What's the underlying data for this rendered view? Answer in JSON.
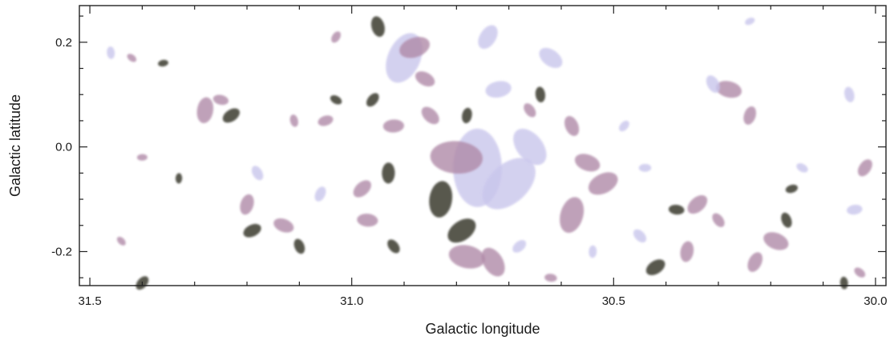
{
  "chart_data": {
    "type": "heatmap",
    "title": "",
    "xlabel": "Galactic longitude",
    "ylabel": "Galactic latitude",
    "xlim": [
      31.52,
      29.98
    ],
    "ylim": [
      -0.265,
      0.27
    ],
    "x_ticks": [
      {
        "value": 31.5,
        "label": "31.5"
      },
      {
        "value": 31.0,
        "label": "31.0"
      },
      {
        "value": 30.5,
        "label": "30.5"
      },
      {
        "value": 30.0,
        "label": "30.0"
      }
    ],
    "x_minor_step": 0.1,
    "y_ticks": [
      {
        "value": 0.2,
        "label": "0.2"
      },
      {
        "value": 0.0,
        "label": "0.0"
      },
      {
        "value": -0.2,
        "label": "-0.2"
      }
    ],
    "y_minor_step": 0.05,
    "grid": false,
    "colors": {
      "lavender": "#c9c6ec",
      "mauve": "#b08aa8",
      "dark": "#3a3a2e",
      "olive": "#6f6a4f"
    },
    "clumps": [
      {
        "l": 30.76,
        "b": -0.04,
        "s": 0.075,
        "c": "lavender"
      },
      {
        "l": 30.7,
        "b": -0.07,
        "s": 0.06,
        "c": "lavender"
      },
      {
        "l": 30.8,
        "b": -0.02,
        "s": 0.05,
        "c": "mauve"
      },
      {
        "l": 30.66,
        "b": 0.0,
        "s": 0.04,
        "c": "lavender"
      },
      {
        "l": 30.83,
        "b": -0.1,
        "s": 0.035,
        "c": "dark"
      },
      {
        "l": 30.79,
        "b": -0.16,
        "s": 0.03,
        "c": "dark"
      },
      {
        "l": 30.78,
        "b": -0.21,
        "s": 0.035,
        "c": "mauve"
      },
      {
        "l": 30.73,
        "b": -0.22,
        "s": 0.03,
        "c": "mauve"
      },
      {
        "l": 30.58,
        "b": -0.13,
        "s": 0.035,
        "c": "mauve"
      },
      {
        "l": 30.52,
        "b": -0.07,
        "s": 0.03,
        "c": "mauve"
      },
      {
        "l": 30.55,
        "b": -0.03,
        "s": 0.025,
        "c": "mauve"
      },
      {
        "l": 30.58,
        "b": 0.04,
        "s": 0.02,
        "c": "mauve"
      },
      {
        "l": 30.9,
        "b": 0.17,
        "s": 0.05,
        "c": "lavender"
      },
      {
        "l": 30.88,
        "b": 0.19,
        "s": 0.03,
        "c": "mauve"
      },
      {
        "l": 30.86,
        "b": 0.13,
        "s": 0.02,
        "c": "mauve"
      },
      {
        "l": 30.95,
        "b": 0.23,
        "s": 0.02,
        "c": "dark"
      },
      {
        "l": 30.74,
        "b": 0.21,
        "s": 0.025,
        "c": "lavender"
      },
      {
        "l": 30.72,
        "b": 0.11,
        "s": 0.025,
        "c": "lavender"
      },
      {
        "l": 30.62,
        "b": 0.17,
        "s": 0.025,
        "c": "lavender"
      },
      {
        "l": 30.64,
        "b": 0.1,
        "s": 0.015,
        "c": "dark"
      },
      {
        "l": 30.96,
        "b": 0.09,
        "s": 0.015,
        "c": "dark"
      },
      {
        "l": 30.92,
        "b": 0.04,
        "s": 0.02,
        "c": "mauve"
      },
      {
        "l": 30.85,
        "b": 0.06,
        "s": 0.02,
        "c": "mauve"
      },
      {
        "l": 30.93,
        "b": -0.05,
        "s": 0.02,
        "c": "dark"
      },
      {
        "l": 30.98,
        "b": -0.08,
        "s": 0.02,
        "c": "mauve"
      },
      {
        "l": 30.97,
        "b": -0.14,
        "s": 0.02,
        "c": "mauve"
      },
      {
        "l": 30.92,
        "b": -0.19,
        "s": 0.015,
        "c": "dark"
      },
      {
        "l": 31.28,
        "b": 0.07,
        "s": 0.025,
        "c": "mauve"
      },
      {
        "l": 31.23,
        "b": 0.06,
        "s": 0.018,
        "c": "dark"
      },
      {
        "l": 31.25,
        "b": 0.09,
        "s": 0.015,
        "c": "mauve"
      },
      {
        "l": 31.18,
        "b": -0.05,
        "s": 0.015,
        "c": "lavender"
      },
      {
        "l": 31.2,
        "b": -0.11,
        "s": 0.02,
        "c": "mauve"
      },
      {
        "l": 31.19,
        "b": -0.16,
        "s": 0.018,
        "c": "dark"
      },
      {
        "l": 31.13,
        "b": -0.15,
        "s": 0.02,
        "c": "mauve"
      },
      {
        "l": 31.1,
        "b": -0.19,
        "s": 0.015,
        "c": "dark"
      },
      {
        "l": 31.06,
        "b": -0.09,
        "s": 0.015,
        "c": "lavender"
      },
      {
        "l": 31.05,
        "b": 0.05,
        "s": 0.015,
        "c": "mauve"
      },
      {
        "l": 31.03,
        "b": 0.09,
        "s": 0.012,
        "c": "dark"
      },
      {
        "l": 31.11,
        "b": 0.05,
        "s": 0.012,
        "c": "mauve"
      },
      {
        "l": 31.03,
        "b": 0.21,
        "s": 0.012,
        "c": "mauve"
      },
      {
        "l": 31.36,
        "b": 0.16,
        "s": 0.01,
        "c": "dark"
      },
      {
        "l": 31.42,
        "b": 0.17,
        "s": 0.01,
        "c": "mauve"
      },
      {
        "l": 31.46,
        "b": 0.18,
        "s": 0.012,
        "c": "lavender"
      },
      {
        "l": 31.4,
        "b": -0.26,
        "s": 0.015,
        "c": "dark"
      },
      {
        "l": 31.4,
        "b": -0.02,
        "s": 0.01,
        "c": "mauve"
      },
      {
        "l": 31.44,
        "b": -0.18,
        "s": 0.01,
        "c": "mauve"
      },
      {
        "l": 31.33,
        "b": -0.06,
        "s": 0.01,
        "c": "dark"
      },
      {
        "l": 30.34,
        "b": -0.11,
        "s": 0.022,
        "c": "mauve"
      },
      {
        "l": 30.38,
        "b": -0.12,
        "s": 0.015,
        "c": "dark"
      },
      {
        "l": 30.3,
        "b": -0.14,
        "s": 0.015,
        "c": "mauve"
      },
      {
        "l": 30.36,
        "b": -0.2,
        "s": 0.02,
        "c": "mauve"
      },
      {
        "l": 30.42,
        "b": -0.23,
        "s": 0.02,
        "c": "dark"
      },
      {
        "l": 30.28,
        "b": 0.11,
        "s": 0.025,
        "c": "mauve"
      },
      {
        "l": 30.31,
        "b": 0.12,
        "s": 0.018,
        "c": "lavender"
      },
      {
        "l": 30.24,
        "b": 0.06,
        "s": 0.018,
        "c": "mauve"
      },
      {
        "l": 30.24,
        "b": 0.24,
        "s": 0.01,
        "c": "lavender"
      },
      {
        "l": 30.19,
        "b": -0.18,
        "s": 0.025,
        "c": "mauve"
      },
      {
        "l": 30.17,
        "b": -0.14,
        "s": 0.015,
        "c": "dark"
      },
      {
        "l": 30.23,
        "b": -0.22,
        "s": 0.02,
        "c": "mauve"
      },
      {
        "l": 30.16,
        "b": -0.08,
        "s": 0.012,
        "c": "dark"
      },
      {
        "l": 30.14,
        "b": -0.04,
        "s": 0.012,
        "c": "lavender"
      },
      {
        "l": 30.05,
        "b": 0.1,
        "s": 0.015,
        "c": "lavender"
      },
      {
        "l": 30.02,
        "b": -0.04,
        "s": 0.018,
        "c": "mauve"
      },
      {
        "l": 30.04,
        "b": -0.12,
        "s": 0.015,
        "c": "lavender"
      },
      {
        "l": 30.03,
        "b": -0.24,
        "s": 0.012,
        "c": "mauve"
      },
      {
        "l": 30.06,
        "b": -0.26,
        "s": 0.012,
        "c": "dark"
      },
      {
        "l": 30.48,
        "b": 0.04,
        "s": 0.012,
        "c": "lavender"
      },
      {
        "l": 30.44,
        "b": -0.04,
        "s": 0.012,
        "c": "lavender"
      },
      {
        "l": 30.45,
        "b": -0.17,
        "s": 0.015,
        "c": "lavender"
      },
      {
        "l": 30.54,
        "b": -0.2,
        "s": 0.012,
        "c": "lavender"
      },
      {
        "l": 30.68,
        "b": -0.19,
        "s": 0.015,
        "c": "lavender"
      },
      {
        "l": 30.62,
        "b": -0.25,
        "s": 0.012,
        "c": "mauve"
      },
      {
        "l": 30.66,
        "b": 0.07,
        "s": 0.015,
        "c": "mauve"
      },
      {
        "l": 30.78,
        "b": 0.06,
        "s": 0.015,
        "c": "dark"
      }
    ]
  }
}
